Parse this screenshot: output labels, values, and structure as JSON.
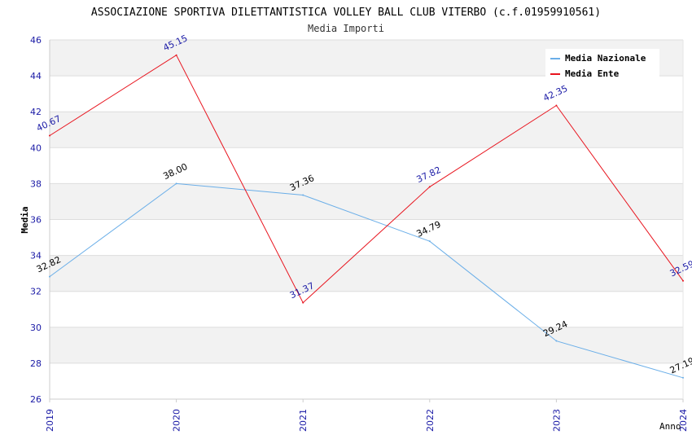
{
  "chart_data": {
    "type": "line",
    "title": "ASSOCIAZIONE SPORTIVA DILETTANTISTICA VOLLEY BALL CLUB VITERBO (c.f.01959910561)",
    "subtitle": "Media Importi",
    "xlabel": "Anno",
    "ylabel": "Media",
    "categories": [
      "2019",
      "2020",
      "2021",
      "2022",
      "2023",
      "2024"
    ],
    "ylim": [
      26,
      46
    ],
    "yticks": [
      "26",
      "28",
      "30",
      "32",
      "34",
      "36",
      "38",
      "40",
      "42",
      "44",
      "46"
    ],
    "grid": true,
    "legend_position": "top-right",
    "series": [
      {
        "name": "Media Nazionale",
        "color": "#6aaee8",
        "label_color": "#000000",
        "values": [
          32.82,
          38.0,
          37.36,
          34.79,
          29.24,
          27.19
        ],
        "labels": [
          "32.82",
          "38.00",
          "37.36",
          "34.79",
          "29.24",
          "27.19"
        ]
      },
      {
        "name": "Media Ente",
        "color": "#e8141e",
        "label_color": "#1a1aa6",
        "values": [
          40.67,
          45.15,
          31.37,
          37.82,
          42.35,
          32.59
        ],
        "labels": [
          "40.67",
          "45.15",
          "31.37",
          "37.82",
          "42.35",
          "32.59"
        ]
      }
    ]
  }
}
